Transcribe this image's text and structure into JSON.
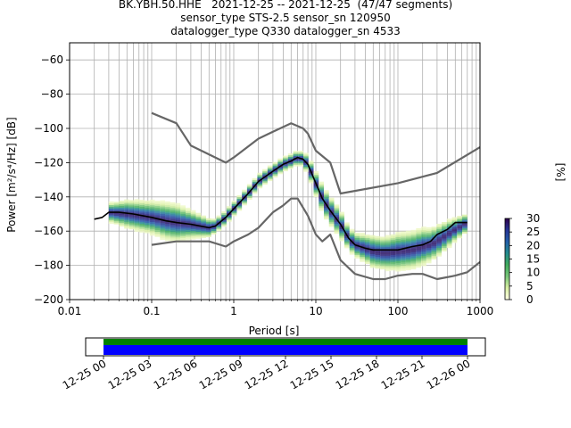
{
  "title_lines": [
    "BK.YBH.50.HHE   2021-12-25 -- 2021-12-25  (47/47 segments)",
    "sensor_type STS-2.5 sensor_sn 120950",
    "datalogger_type Q330 datalogger_sn 4533"
  ],
  "chart_data": {
    "type": "heatmap",
    "xlabel": "Period [s]",
    "ylabel": "Power [m²/s⁴/Hz] [dB]",
    "x_scale": "log",
    "xlim": [
      0.01,
      1000
    ],
    "ylim": [
      -200,
      -50
    ],
    "grid": true,
    "x_major_ticks": [
      {
        "value": 0.01,
        "label": "0.01"
      },
      {
        "value": 0.1,
        "label": "0.1"
      },
      {
        "value": 1,
        "label": "1"
      },
      {
        "value": 10,
        "label": "10"
      },
      {
        "value": 100,
        "label": "100"
      },
      {
        "value": 1000,
        "label": "1000"
      }
    ],
    "y_ticks": [
      {
        "value": -60,
        "label": "−60"
      },
      {
        "value": -80,
        "label": "−80"
      },
      {
        "value": -100,
        "label": "−100"
      },
      {
        "value": -120,
        "label": "−120"
      },
      {
        "value": -140,
        "label": "−140"
      },
      {
        "value": -160,
        "label": "−160"
      },
      {
        "value": -180,
        "label": "−180"
      },
      {
        "value": -200,
        "label": "−200"
      }
    ],
    "mean_psd": {
      "x": [
        0.02,
        0.025,
        0.03,
        0.04,
        0.06,
        0.1,
        0.15,
        0.2,
        0.3,
        0.5,
        0.6,
        0.8,
        1,
        1.5,
        2,
        3,
        4,
        5,
        6,
        7,
        8,
        10,
        12,
        15,
        20,
        25,
        30,
        40,
        50,
        70,
        100,
        150,
        200,
        250,
        300,
        400,
        500,
        700
      ],
      "y": [
        -153,
        -152,
        -149,
        -149,
        -150,
        -152,
        -154,
        -155,
        -156,
        -158,
        -157,
        -152,
        -147,
        -138,
        -131,
        -125,
        -121,
        -119,
        -117,
        -118,
        -121,
        -132,
        -141,
        -148,
        -156,
        -164,
        -168,
        -170,
        -171,
        -171,
        -171,
        -169,
        -168,
        -166,
        -162,
        -159,
        -155,
        -155
      ]
    },
    "psd_density": {
      "x": [
        0.03,
        0.05,
        0.1,
        0.15,
        0.2,
        0.3,
        0.5,
        0.6,
        0.8,
        1,
        1.5,
        2,
        3,
        4,
        5,
        6,
        7,
        8,
        10,
        12,
        15,
        20,
        25,
        30,
        40,
        50,
        70,
        100,
        150,
        200,
        250,
        300,
        400,
        500,
        700
      ],
      "center": [
        -149,
        -150,
        -152,
        -154,
        -155,
        -156,
        -158,
        -157,
        -152,
        -147,
        -138,
        -131,
        -125,
        -121,
        -119,
        -117,
        -118,
        -121,
        -132,
        -141,
        -148,
        -156,
        -164,
        -168,
        -170,
        -172,
        -173,
        -172,
        -171,
        -169,
        -168,
        -166,
        -162,
        -159,
        -155
      ],
      "spread": [
        4,
        6,
        7,
        8,
        8,
        6,
        4,
        3,
        3,
        3,
        3,
        3,
        3,
        3,
        3,
        3,
        3,
        4,
        5,
        6,
        6,
        6,
        5,
        5,
        6,
        7,
        7,
        8,
        8,
        8,
        7,
        7,
        6,
        5,
        4
      ]
    },
    "noise_models": [
      {
        "x": [
          0.1,
          0.2,
          0.3,
          0.8,
          1,
          2,
          3,
          5,
          7,
          8,
          10,
          15,
          20,
          100,
          300,
          1000
        ],
        "y": [
          -91,
          -97,
          -110,
          -120,
          -117,
          -106,
          -102,
          -97,
          -100,
          -103,
          -113,
          -120,
          -138,
          -132,
          -126,
          -111
        ]
      },
      {
        "x": [
          0.1,
          0.2,
          0.5,
          0.8,
          1,
          1.5,
          2,
          3,
          4,
          5,
          6,
          8,
          10,
          12,
          15,
          20,
          30,
          50,
          70,
          100,
          150,
          200,
          300,
          500,
          700,
          1000
        ],
        "y": [
          -168,
          -166,
          -166,
          -169,
          -166,
          -162,
          -158,
          -149,
          -145,
          -141,
          -141,
          -151,
          -162,
          -166,
          -162,
          -177,
          -185,
          -188,
          -188,
          -186,
          -185,
          -185,
          -188,
          -186,
          -184,
          -178
        ]
      }
    ],
    "colorbar": {
      "label": "[%]",
      "min": 0,
      "max": 30,
      "ticks": [
        {
          "value": 0,
          "label": "0"
        },
        {
          "value": 5,
          "label": "5"
        },
        {
          "value": 10,
          "label": "10"
        },
        {
          "value": 15,
          "label": "15"
        },
        {
          "value": 20,
          "label": "20"
        },
        {
          "value": 25,
          "label": "25"
        },
        {
          "value": 30,
          "label": "30"
        }
      ],
      "colors": [
        "#ffffe5",
        "#d9f0a3",
        "#78c679",
        "#41ab5d",
        "#238b8d",
        "#225ea8",
        "#253494",
        "#2d004b"
      ]
    },
    "timeline": {
      "start": "12-25 00",
      "end": "12-26 00",
      "labels": [
        "12-25 00",
        "12-25 03",
        "12-25 06",
        "12-25 09",
        "12-25 12",
        "12-25 15",
        "12-25 18",
        "12-25 21",
        "12-26 00"
      ],
      "coverage_fraction": 1.0,
      "bar_colors": [
        "#008000",
        "#0000ff"
      ]
    }
  }
}
